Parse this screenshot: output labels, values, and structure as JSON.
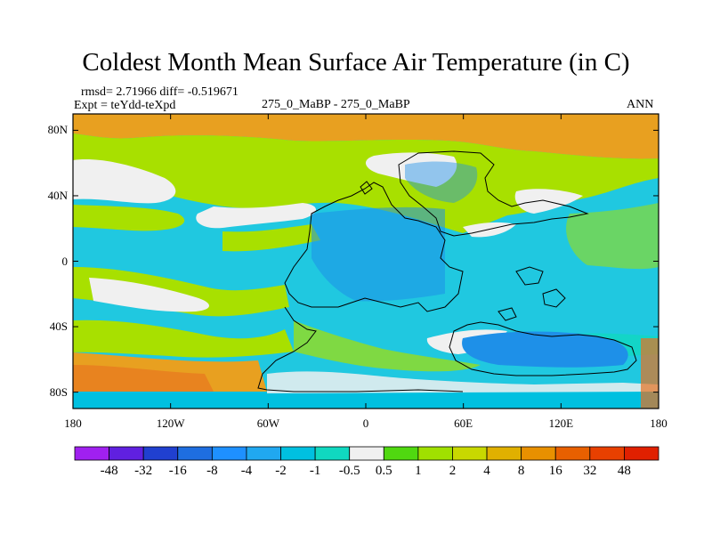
{
  "title": "Coldest Month Mean Surface Air Temperature (in C)",
  "stats_line": "rmsd= 2.71966 diff= -0.519671",
  "expt_line": "Expt = teYdd-teXpd",
  "center_label": "275_0_MaBP - 275_0_MaBP",
  "season_label": "ANN",
  "lat_ticks": [
    {
      "label": "80N",
      "lat": 80
    },
    {
      "label": "40N",
      "lat": 40
    },
    {
      "label": "0",
      "lat": 0
    },
    {
      "label": "40S",
      "lat": -40
    },
    {
      "label": "80S",
      "lat": -80
    }
  ],
  "lon_ticks": [
    {
      "label": "180",
      "lon": -180
    },
    {
      "label": "120W",
      "lon": -120
    },
    {
      "label": "60W",
      "lon": -60
    },
    {
      "label": "0",
      "lon": 0
    },
    {
      "label": "60E",
      "lon": 60
    },
    {
      "label": "120E",
      "lon": 120
    },
    {
      "label": "180",
      "lon": 180
    }
  ],
  "colorbar": {
    "labels": [
      "-48",
      "-32",
      "-16",
      "-8",
      "-4",
      "-2",
      "-1",
      "-0.5",
      "0.5",
      "1",
      "2",
      "4",
      "8",
      "16",
      "32",
      "48"
    ],
    "colors": [
      "#a020f0",
      "#6020e0",
      "#2040d0",
      "#1e6ee0",
      "#1e90ff",
      "#20a8f0",
      "#00c0e0",
      "#10d8c0",
      "#f0f0f0",
      "#50d810",
      "#a0e000",
      "#c8d800",
      "#e0b000",
      "#e89000",
      "#e86000",
      "#e84000",
      "#e02000"
    ]
  },
  "colors": {
    "warm_high": "#e8a020",
    "warm_mid": "#d8c000",
    "green": "#a8e000",
    "neutral": "#f0f0f0",
    "cool": "#20c8e0",
    "cold": "#1e90e8"
  }
}
